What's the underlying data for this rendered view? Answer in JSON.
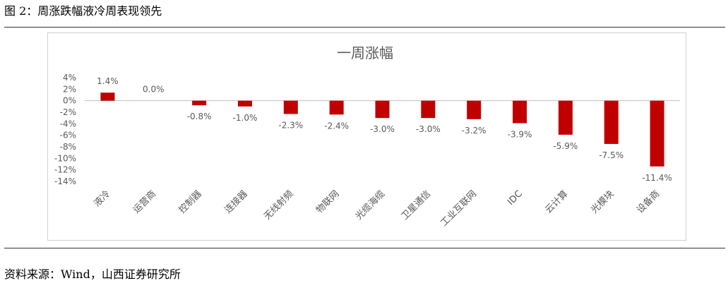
{
  "caption": "图 2：周涨跌幅液冷周表现领先",
  "source": "资料来源：Wind，山西证券研究所",
  "colors": {
    "bar": "#C00000",
    "axis": "#bfbfbf",
    "text": "#595959",
    "title": "#595959"
  },
  "chart_data": {
    "type": "bar",
    "title": "一周涨幅",
    "xlabel": "",
    "ylabel": "",
    "ylim": [
      -14,
      4
    ],
    "yticks": [
      4,
      2,
      0,
      -2,
      -4,
      -6,
      -8,
      -10,
      -12,
      -14
    ],
    "ytick_labels": [
      "4%",
      "2%",
      "0%",
      "-2%",
      "-4%",
      "-6%",
      "-8%",
      "-10%",
      "-12%",
      "-14%"
    ],
    "categories": [
      "液冷",
      "运营商",
      "控制器",
      "连接器",
      "无线射频",
      "物联网",
      "光缆海缆",
      "卫星通信",
      "工业互联网",
      "IDC",
      "云计算",
      "光模块",
      "设备商"
    ],
    "values": [
      1.4,
      0.0,
      -0.8,
      -1.0,
      -2.3,
      -2.4,
      -3.0,
      -3.0,
      -3.2,
      -3.9,
      -5.9,
      -7.5,
      -11.4
    ],
    "data_labels": [
      "1.4%",
      "0.0%",
      "-0.8%",
      "-1.0%",
      "-2.3%",
      "-2.4%",
      "-3.0%",
      "-3.0%",
      "-3.2%",
      "-3.9%",
      "-5.9%",
      "-7.5%",
      "-11.4%"
    ],
    "grid": false,
    "legend": "none"
  }
}
